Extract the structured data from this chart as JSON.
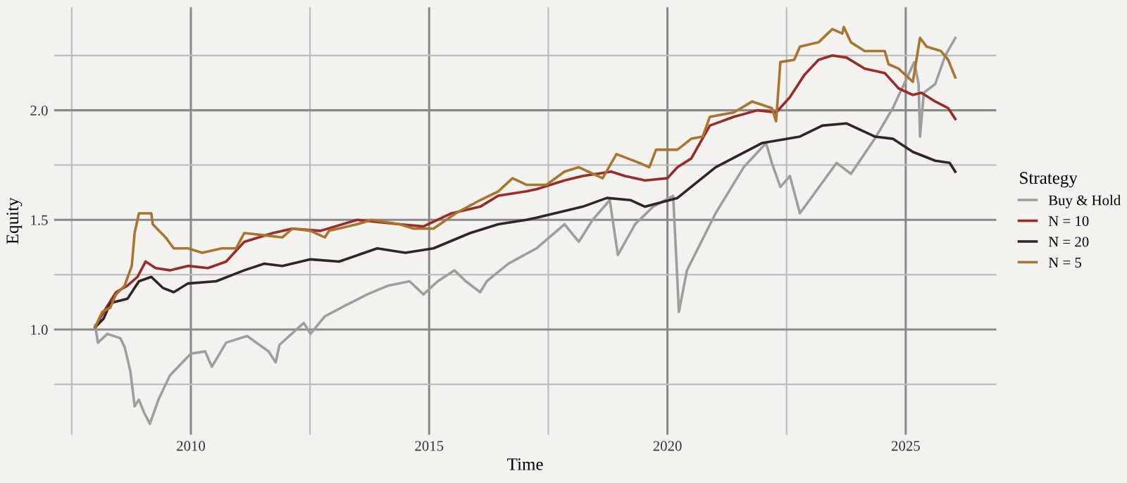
{
  "chart_data": {
    "type": "line",
    "xlabel": "Time",
    "ylabel": "Equity",
    "legend_title": "Strategy",
    "legend": "right",
    "grid": true,
    "xlim": [
      2007.13,
      2026.9
    ],
    "ylim": [
      0.52,
      2.47
    ],
    "xticks": [
      {
        "value": 2007.5,
        "label": null
      },
      2010,
      {
        "value": 2012.5,
        "label": null
      },
      2015,
      {
        "value": 2017.5,
        "label": null
      },
      2020,
      {
        "value": 2022.5,
        "label": null
      },
      2025
    ],
    "yticks": [
      {
        "value": 0.75,
        "label": null
      },
      {
        "value": 1.0,
        "label": "1.0"
      },
      {
        "value": 1.25,
        "label": null
      },
      1.5,
      {
        "value": 1.75,
        "label": null
      },
      {
        "value": 2.0,
        "label": "2.0"
      },
      {
        "value": 2.25,
        "label": null
      }
    ],
    "series": [
      {
        "name": "Buy & Hold",
        "color": "#9e9e9e",
        "x": [
          2007.99,
          2008.05,
          2008.25,
          2008.52,
          2008.61,
          2008.73,
          2008.82,
          2008.91,
          2009.02,
          2009.14,
          2009.32,
          2009.56,
          2010.0,
          2010.3,
          2010.44,
          2010.74,
          2011.18,
          2011.63,
          2011.78,
          2011.86,
          2012.37,
          2012.51,
          2012.81,
          2013.25,
          2013.7,
          2014.14,
          2014.59,
          2014.88,
          2015.18,
          2015.53,
          2015.77,
          2016.07,
          2016.21,
          2016.66,
          2017.25,
          2017.84,
          2018.14,
          2018.43,
          2018.79,
          2018.96,
          2019.32,
          2019.7,
          2020.12,
          2020.21,
          2020.24,
          2020.41,
          2021.01,
          2021.6,
          2022.07,
          2022.19,
          2022.37,
          2022.57,
          2022.78,
          2023.55,
          2023.85,
          2024.35,
          2024.73,
          2025.18,
          2025.27,
          2025.3,
          2025.38,
          2025.62,
          2025.83,
          2026.04
        ],
        "values": [
          1.02,
          0.94,
          0.98,
          0.96,
          0.92,
          0.81,
          0.65,
          0.68,
          0.62,
          0.57,
          0.68,
          0.79,
          0.89,
          0.9,
          0.83,
          0.94,
          0.97,
          0.9,
          0.85,
          0.93,
          1.03,
          0.98,
          1.06,
          1.11,
          1.16,
          1.2,
          1.22,
          1.16,
          1.22,
          1.27,
          1.22,
          1.17,
          1.22,
          1.3,
          1.37,
          1.48,
          1.4,
          1.5,
          1.59,
          1.34,
          1.48,
          1.56,
          1.61,
          1.22,
          1.08,
          1.27,
          1.53,
          1.74,
          1.85,
          1.76,
          1.65,
          1.7,
          1.53,
          1.76,
          1.71,
          1.87,
          2.01,
          2.22,
          2.12,
          1.88,
          2.08,
          2.12,
          2.25,
          2.33
        ]
      },
      {
        "name": "N = 10",
        "color": "#9b2a2a",
        "x": [
          2007.99,
          2008.17,
          2008.43,
          2008.67,
          2008.88,
          2009.05,
          2009.26,
          2009.56,
          2009.94,
          2010.36,
          2010.74,
          2011.12,
          2011.72,
          2012.13,
          2012.72,
          2013.49,
          2014.38,
          2014.88,
          2015.47,
          2016.07,
          2016.45,
          2017.04,
          2017.25,
          2017.84,
          2018.22,
          2018.82,
          2019.11,
          2019.53,
          2020.0,
          2020.21,
          2020.5,
          2020.89,
          2021.39,
          2021.89,
          2022.28,
          2022.57,
          2022.87,
          2023.17,
          2023.46,
          2023.76,
          2024.14,
          2024.56,
          2024.85,
          2025.15,
          2025.33,
          2025.62,
          2025.89,
          2026.04
        ],
        "values": [
          1.01,
          1.08,
          1.17,
          1.2,
          1.24,
          1.31,
          1.28,
          1.27,
          1.29,
          1.28,
          1.31,
          1.4,
          1.44,
          1.46,
          1.45,
          1.5,
          1.48,
          1.47,
          1.53,
          1.56,
          1.61,
          1.63,
          1.64,
          1.68,
          1.7,
          1.72,
          1.7,
          1.68,
          1.69,
          1.74,
          1.78,
          1.93,
          1.97,
          2.0,
          1.99,
          2.06,
          2.16,
          2.23,
          2.25,
          2.24,
          2.19,
          2.17,
          2.1,
          2.07,
          2.08,
          2.04,
          2.01,
          1.96
        ]
      },
      {
        "name": "N = 20",
        "color": "#2e2626",
        "x": [
          2007.99,
          2008.17,
          2008.31,
          2008.67,
          2008.91,
          2009.17,
          2009.41,
          2009.64,
          2009.94,
          2010.53,
          2011.12,
          2011.54,
          2011.92,
          2012.51,
          2013.11,
          2013.91,
          2014.5,
          2015.09,
          2015.86,
          2016.45,
          2017.04,
          2017.25,
          2018.22,
          2018.73,
          2019.23,
          2019.53,
          2020.21,
          2021.01,
          2021.98,
          2022.78,
          2023.25,
          2023.76,
          2024.35,
          2024.73,
          2025.15,
          2025.62,
          2025.92,
          2026.04
        ],
        "values": [
          1.01,
          1.05,
          1.12,
          1.14,
          1.22,
          1.24,
          1.19,
          1.17,
          1.21,
          1.22,
          1.27,
          1.3,
          1.29,
          1.32,
          1.31,
          1.37,
          1.35,
          1.37,
          1.44,
          1.48,
          1.5,
          1.51,
          1.56,
          1.6,
          1.59,
          1.56,
          1.6,
          1.74,
          1.85,
          1.88,
          1.93,
          1.94,
          1.88,
          1.87,
          1.81,
          1.77,
          1.76,
          1.72
        ]
      },
      {
        "name": "N = 5",
        "color": "#a8742e",
        "x": [
          2007.99,
          2008.14,
          2008.31,
          2008.43,
          2008.61,
          2008.76,
          2008.82,
          2008.91,
          2009.17,
          2009.2,
          2009.47,
          2009.64,
          2009.94,
          2010.24,
          2010.65,
          2010.95,
          2011.12,
          2011.54,
          2011.92,
          2012.13,
          2012.51,
          2012.81,
          2012.9,
          2013.49,
          2013.79,
          2014.38,
          2014.67,
          2015.09,
          2015.56,
          2016.07,
          2016.45,
          2016.75,
          2017.04,
          2017.46,
          2017.84,
          2018.14,
          2018.64,
          2018.93,
          2019.41,
          2019.62,
          2019.76,
          2020.21,
          2020.5,
          2020.74,
          2020.89,
          2021.39,
          2021.78,
          2022.19,
          2022.28,
          2022.37,
          2022.66,
          2022.78,
          2023.17,
          2023.46,
          2023.67,
          2023.7,
          2023.85,
          2024.14,
          2024.56,
          2024.64,
          2024.85,
          2025.15,
          2025.3,
          2025.44,
          2025.74,
          2025.89,
          2026.04
        ],
        "values": [
          1.01,
          1.08,
          1.1,
          1.16,
          1.2,
          1.29,
          1.44,
          1.53,
          1.53,
          1.48,
          1.42,
          1.37,
          1.37,
          1.35,
          1.37,
          1.37,
          1.44,
          1.43,
          1.42,
          1.46,
          1.45,
          1.42,
          1.45,
          1.48,
          1.5,
          1.48,
          1.46,
          1.46,
          1.53,
          1.59,
          1.63,
          1.69,
          1.66,
          1.66,
          1.72,
          1.74,
          1.69,
          1.8,
          1.76,
          1.74,
          1.82,
          1.82,
          1.87,
          1.88,
          1.97,
          1.99,
          2.04,
          2.01,
          1.95,
          2.22,
          2.23,
          2.29,
          2.31,
          2.37,
          2.35,
          2.38,
          2.31,
          2.27,
          2.27,
          2.21,
          2.19,
          2.13,
          2.33,
          2.29,
          2.27,
          2.23,
          2.15
        ]
      }
    ]
  }
}
